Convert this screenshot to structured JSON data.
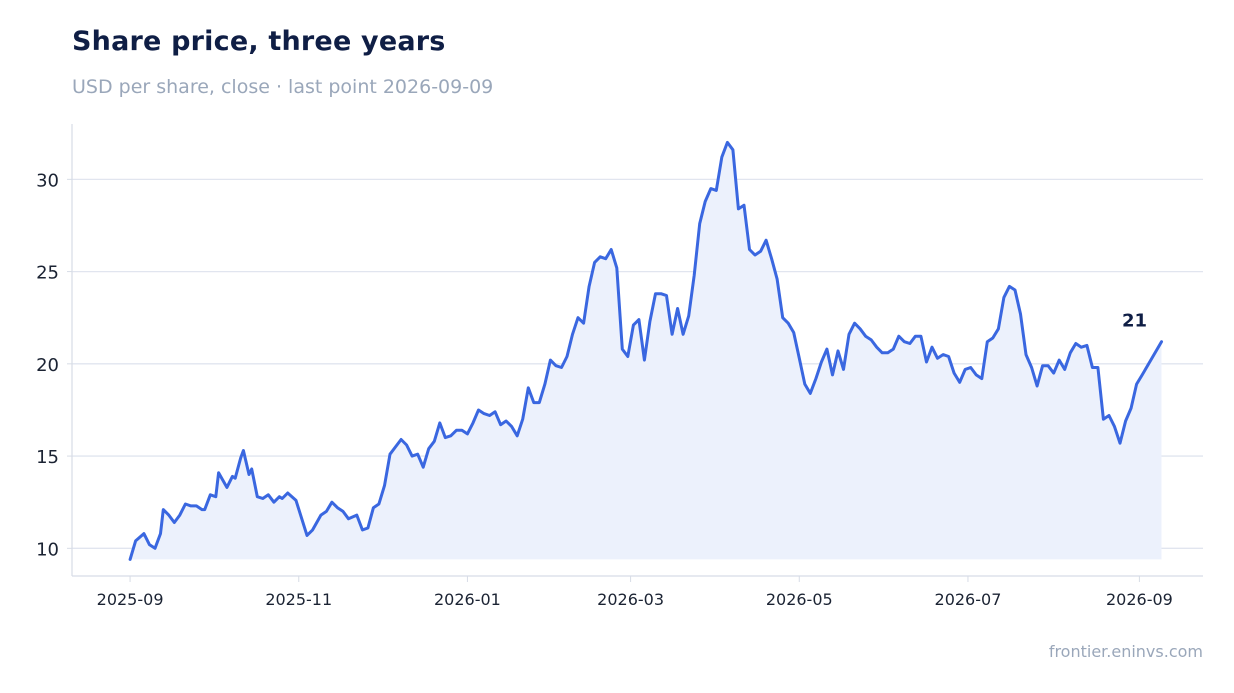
{
  "title": "Share price, three years",
  "subtitle": "USD per share, close · last point 2026-09-09",
  "credit": "frontier.eninvs.com",
  "colors": {
    "line": "#3a67e0",
    "area": "#ecf1fc",
    "grid": "#e1e5ef",
    "axis": "#d7dce6",
    "title": "#0f1e45",
    "muted": "#9aa7ba"
  },
  "chart_data": {
    "type": "area",
    "title": "Share price, three years",
    "subtitle": "USD per share, close · last point 2026-09-09",
    "xlabel": "",
    "ylabel": "",
    "grid": "horizontal",
    "ylim": [
      8.5,
      33
    ],
    "xlim": [
      "2025-08-11",
      "2026-09-24"
    ],
    "yticks": [
      10,
      15,
      20,
      25,
      30
    ],
    "xticks": [
      "2025-09",
      "2025-11",
      "2026-01",
      "2026-03",
      "2026-05",
      "2026-07",
      "2026-09"
    ],
    "last_label": "21",
    "series": [
      {
        "points": [
          [
            "2025-09-01",
            9.4
          ],
          [
            "2025-09-03",
            10.4
          ],
          [
            "2025-09-06",
            10.8
          ],
          [
            "2025-09-08",
            10.2
          ],
          [
            "2025-09-10",
            10.0
          ],
          [
            "2025-09-12",
            10.8
          ],
          [
            "2025-09-13",
            12.1
          ],
          [
            "2025-09-15",
            11.8
          ],
          [
            "2025-09-17",
            11.4
          ],
          [
            "2025-09-19",
            11.8
          ],
          [
            "2025-09-21",
            12.4
          ],
          [
            "2025-09-23",
            12.3
          ],
          [
            "2025-09-25",
            12.3
          ],
          [
            "2025-09-27",
            12.1
          ],
          [
            "2025-09-28",
            12.1
          ],
          [
            "2025-09-30",
            12.9
          ],
          [
            "2025-10-02",
            12.8
          ],
          [
            "2025-10-03",
            14.1
          ],
          [
            "2025-10-06",
            13.3
          ],
          [
            "2025-10-08",
            13.9
          ],
          [
            "2025-10-09",
            13.8
          ],
          [
            "2025-10-11",
            14.9
          ],
          [
            "2025-10-12",
            15.3
          ],
          [
            "2025-10-14",
            14.0
          ],
          [
            "2025-10-15",
            14.3
          ],
          [
            "2025-10-17",
            12.8
          ],
          [
            "2025-10-19",
            12.7
          ],
          [
            "2025-10-21",
            12.9
          ],
          [
            "2025-10-23",
            12.5
          ],
          [
            "2025-10-25",
            12.8
          ],
          [
            "2025-10-26",
            12.7
          ],
          [
            "2025-10-28",
            13.0
          ],
          [
            "2025-10-31",
            12.6
          ],
          [
            "2025-11-04",
            10.7
          ],
          [
            "2025-11-06",
            11.0
          ],
          [
            "2025-11-09",
            11.8
          ],
          [
            "2025-11-11",
            12.0
          ],
          [
            "2025-11-13",
            12.5
          ],
          [
            "2025-11-15",
            12.2
          ],
          [
            "2025-11-17",
            12.0
          ],
          [
            "2025-11-19",
            11.6
          ],
          [
            "2025-11-22",
            11.8
          ],
          [
            "2025-11-24",
            11.0
          ],
          [
            "2025-11-26",
            11.1
          ],
          [
            "2025-11-28",
            12.2
          ],
          [
            "2025-11-30",
            12.4
          ],
          [
            "2025-12-02",
            13.4
          ],
          [
            "2025-12-04",
            15.1
          ],
          [
            "2025-12-06",
            15.5
          ],
          [
            "2025-12-08",
            15.9
          ],
          [
            "2025-12-10",
            15.6
          ],
          [
            "2025-12-12",
            15.0
          ],
          [
            "2025-12-14",
            15.1
          ],
          [
            "2025-12-16",
            14.4
          ],
          [
            "2025-12-18",
            15.4
          ],
          [
            "2025-12-20",
            15.8
          ],
          [
            "2025-12-22",
            16.8
          ],
          [
            "2025-12-24",
            16.0
          ],
          [
            "2025-12-26",
            16.1
          ],
          [
            "2025-12-28",
            16.4
          ],
          [
            "2025-12-30",
            16.4
          ],
          [
            "2026-01-01",
            16.2
          ],
          [
            "2026-01-03",
            16.8
          ],
          [
            "2026-01-05",
            17.5
          ],
          [
            "2026-01-07",
            17.3
          ],
          [
            "2026-01-09",
            17.2
          ],
          [
            "2026-01-11",
            17.4
          ],
          [
            "2026-01-13",
            16.7
          ],
          [
            "2026-01-15",
            16.9
          ],
          [
            "2026-01-17",
            16.6
          ],
          [
            "2026-01-19",
            16.1
          ],
          [
            "2026-01-21",
            17.0
          ],
          [
            "2026-01-23",
            18.7
          ],
          [
            "2026-01-25",
            17.9
          ],
          [
            "2026-01-27",
            17.9
          ],
          [
            "2026-01-29",
            18.9
          ],
          [
            "2026-01-31",
            20.2
          ],
          [
            "2026-02-02",
            19.9
          ],
          [
            "2026-02-04",
            19.8
          ],
          [
            "2026-02-06",
            20.4
          ],
          [
            "2026-02-08",
            21.6
          ],
          [
            "2026-02-10",
            22.5
          ],
          [
            "2026-02-12",
            22.2
          ],
          [
            "2026-02-14",
            24.2
          ],
          [
            "2026-02-16",
            25.5
          ],
          [
            "2026-02-18",
            25.8
          ],
          [
            "2026-02-20",
            25.7
          ],
          [
            "2026-02-22",
            26.2
          ],
          [
            "2026-02-24",
            25.2
          ],
          [
            "2026-02-26",
            20.8
          ],
          [
            "2026-02-28",
            20.4
          ],
          [
            "2026-03-02",
            22.1
          ],
          [
            "2026-03-04",
            22.4
          ],
          [
            "2026-03-06",
            20.2
          ],
          [
            "2026-03-08",
            22.3
          ],
          [
            "2026-03-10",
            23.8
          ],
          [
            "2026-03-12",
            23.8
          ],
          [
            "2026-03-14",
            23.7
          ],
          [
            "2026-03-16",
            21.6
          ],
          [
            "2026-03-18",
            23.0
          ],
          [
            "2026-03-20",
            21.6
          ],
          [
            "2026-03-22",
            22.6
          ],
          [
            "2026-03-24",
            24.8
          ],
          [
            "2026-03-26",
            27.6
          ],
          [
            "2026-03-28",
            28.8
          ],
          [
            "2026-03-30",
            29.5
          ],
          [
            "2026-04-01",
            29.4
          ],
          [
            "2026-04-03",
            31.2
          ],
          [
            "2026-04-05",
            32.0
          ],
          [
            "2026-04-07",
            31.6
          ],
          [
            "2026-04-09",
            28.4
          ],
          [
            "2026-04-11",
            28.6
          ],
          [
            "2026-04-13",
            26.2
          ],
          [
            "2026-04-15",
            25.9
          ],
          [
            "2026-04-17",
            26.1
          ],
          [
            "2026-04-19",
            26.7
          ],
          [
            "2026-04-21",
            25.7
          ],
          [
            "2026-04-23",
            24.6
          ],
          [
            "2026-04-25",
            22.5
          ],
          [
            "2026-04-27",
            22.2
          ],
          [
            "2026-04-29",
            21.7
          ],
          [
            "2026-05-01",
            20.3
          ],
          [
            "2026-05-03",
            18.9
          ],
          [
            "2026-05-05",
            18.4
          ],
          [
            "2026-05-07",
            19.2
          ],
          [
            "2026-05-09",
            20.1
          ],
          [
            "2026-05-11",
            20.8
          ],
          [
            "2026-05-13",
            19.4
          ],
          [
            "2026-05-15",
            20.7
          ],
          [
            "2026-05-17",
            19.7
          ],
          [
            "2026-05-19",
            21.6
          ],
          [
            "2026-05-21",
            22.2
          ],
          [
            "2026-05-23",
            21.9
          ],
          [
            "2026-05-25",
            21.5
          ],
          [
            "2026-05-27",
            21.3
          ],
          [
            "2026-05-29",
            20.9
          ],
          [
            "2026-05-31",
            20.6
          ],
          [
            "2026-06-02",
            20.6
          ],
          [
            "2026-06-04",
            20.8
          ],
          [
            "2026-06-06",
            21.5
          ],
          [
            "2026-06-08",
            21.2
          ],
          [
            "2026-06-10",
            21.1
          ],
          [
            "2026-06-12",
            21.5
          ],
          [
            "2026-06-14",
            21.5
          ],
          [
            "2026-06-16",
            20.1
          ],
          [
            "2026-06-18",
            20.9
          ],
          [
            "2026-06-20",
            20.3
          ],
          [
            "2026-06-22",
            20.5
          ],
          [
            "2026-06-24",
            20.4
          ],
          [
            "2026-06-26",
            19.5
          ],
          [
            "2026-06-28",
            19.0
          ],
          [
            "2026-06-30",
            19.7
          ],
          [
            "2026-07-02",
            19.8
          ],
          [
            "2026-07-04",
            19.4
          ],
          [
            "2026-07-06",
            19.2
          ],
          [
            "2026-07-08",
            21.2
          ],
          [
            "2026-07-10",
            21.4
          ],
          [
            "2026-07-12",
            21.9
          ],
          [
            "2026-07-14",
            23.6
          ],
          [
            "2026-07-16",
            24.2
          ],
          [
            "2026-07-18",
            24.0
          ],
          [
            "2026-07-20",
            22.7
          ],
          [
            "2026-07-22",
            20.5
          ],
          [
            "2026-07-24",
            19.8
          ],
          [
            "2026-07-26",
            18.8
          ],
          [
            "2026-07-28",
            19.9
          ],
          [
            "2026-07-30",
            19.9
          ],
          [
            "2026-08-01",
            19.5
          ],
          [
            "2026-08-03",
            20.2
          ],
          [
            "2026-08-05",
            19.7
          ],
          [
            "2026-08-07",
            20.6
          ],
          [
            "2026-08-09",
            21.1
          ],
          [
            "2026-08-11",
            20.9
          ],
          [
            "2026-08-13",
            21.0
          ],
          [
            "2026-08-15",
            19.8
          ],
          [
            "2026-08-17",
            19.8
          ],
          [
            "2026-08-19",
            17.0
          ],
          [
            "2026-08-21",
            17.2
          ],
          [
            "2026-08-23",
            16.6
          ],
          [
            "2026-08-25",
            15.7
          ],
          [
            "2026-08-27",
            16.9
          ],
          [
            "2026-08-29",
            17.6
          ],
          [
            "2026-08-31",
            18.9
          ],
          [
            "2026-09-02",
            19.4
          ],
          [
            "2026-09-09",
            21.2
          ]
        ]
      }
    ]
  }
}
